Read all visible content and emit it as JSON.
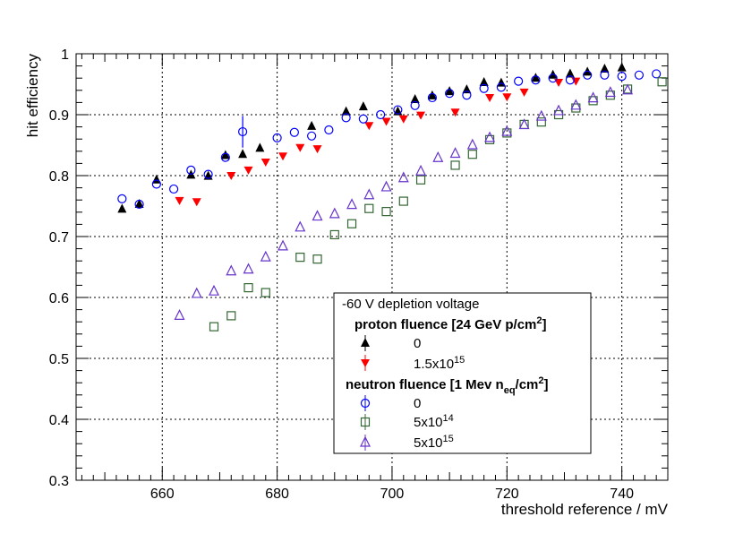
{
  "chart_data": {
    "type": "scatter",
    "xlabel": "threshold reference / mV",
    "ylabel": "hit efficiency",
    "xlim": [
      645,
      748
    ],
    "ylim": [
      0.3,
      1.0
    ],
    "xticks": [
      660,
      680,
      700,
      720,
      740
    ],
    "yticks": [
      0.3,
      0.4,
      0.5,
      0.6,
      0.7,
      0.8,
      0.9,
      1.0
    ],
    "ytick_labels": [
      "0.3",
      "0.4",
      "0.5",
      "0.6",
      "0.7",
      "0.8",
      "0.9",
      "1"
    ],
    "grid": true,
    "legend": {
      "title": "-60 V depletion voltage",
      "proton_header": "proton fluence [24 GeV p/cm",
      "proton_header_sup": "2",
      "proton_header_end": "]",
      "neutron_header": "neutron fluence [1 Mev n",
      "neutron_header_sub": "eq",
      "neutron_header_mid": "/cm",
      "neutron_header_sup": "2",
      "neutron_header_end": "]",
      "entries": [
        {
          "label": "0",
          "sup": "",
          "marker": "triangle-up",
          "color": "#000000"
        },
        {
          "label": "1.5x10",
          "sup": "15",
          "marker": "triangle-down",
          "color": "#ff0000"
        },
        {
          "label": "0",
          "sup": "",
          "marker": "circle-open",
          "color": "#0000ff"
        },
        {
          "label": "5x10",
          "sup": "14",
          "marker": "square-open",
          "color": "#336633"
        },
        {
          "label": "5x10",
          "sup": "15",
          "marker": "triangle-up-open",
          "color": "#6633cc"
        }
      ]
    },
    "series": [
      {
        "name": "proton 0",
        "marker": "triangle-up",
        "color": "#000000",
        "x": [
          653,
          656,
          659,
          665,
          668,
          671,
          674,
          677,
          686,
          692,
          695,
          701,
          704,
          707,
          710,
          713,
          716,
          719,
          725,
          728,
          731,
          734,
          737,
          740
        ],
        "y": [
          0.745,
          0.753,
          0.793,
          0.801,
          0.799,
          0.833,
          0.835,
          0.845,
          0.881,
          0.905,
          0.913,
          0.905,
          0.925,
          0.931,
          0.938,
          0.941,
          0.953,
          0.952,
          0.96,
          0.965,
          0.967,
          0.97,
          0.975,
          0.977
        ]
      },
      {
        "name": "proton 1.5x10^15",
        "marker": "triangle-down",
        "color": "#ff0000",
        "x": [
          663,
          666,
          672,
          675,
          678,
          681,
          684,
          687,
          696,
          699,
          702,
          705,
          711,
          717,
          720,
          723,
          729,
          732
        ],
        "y": [
          0.759,
          0.757,
          0.8,
          0.809,
          0.822,
          0.832,
          0.846,
          0.844,
          0.882,
          0.889,
          0.893,
          0.899,
          0.904,
          0.928,
          0.929,
          0.937,
          0.953,
          0.955
        ]
      },
      {
        "name": "neutron 0",
        "marker": "circle-open",
        "color": "#0000ff",
        "x": [
          653,
          656,
          659,
          662,
          665,
          668,
          671,
          674,
          680,
          683,
          686,
          689,
          692,
          695,
          698,
          701,
          704,
          707,
          710,
          713,
          716,
          719,
          722,
          725,
          728,
          731,
          734,
          737,
          740,
          743,
          746
        ],
        "y": [
          0.762,
          0.753,
          0.786,
          0.778,
          0.809,
          0.802,
          0.83,
          0.872,
          0.862,
          0.871,
          0.865,
          0.875,
          0.895,
          0.893,
          0.9,
          0.908,
          0.915,
          0.928,
          0.935,
          0.932,
          0.943,
          0.945,
          0.955,
          0.957,
          0.96,
          0.957,
          0.965,
          0.965,
          0.963,
          0.965,
          0.967
        ]
      },
      {
        "name": "neutron 5x10^14",
        "marker": "square-open",
        "color": "#336633",
        "x": [
          669,
          672,
          675,
          678,
          684,
          687,
          690,
          693,
          696,
          699,
          702,
          705,
          711,
          714,
          717,
          720,
          723,
          726,
          729,
          732,
          735,
          738,
          741,
          747
        ],
        "y": [
          0.552,
          0.57,
          0.616,
          0.608,
          0.666,
          0.663,
          0.703,
          0.721,
          0.746,
          0.741,
          0.758,
          0.793,
          0.817,
          0.835,
          0.859,
          0.87,
          0.884,
          0.888,
          0.9,
          0.911,
          0.923,
          0.932,
          0.942,
          0.954
        ]
      },
      {
        "name": "neutron 5x10^15",
        "marker": "triangle-up-open",
        "color": "#6633cc",
        "x": [
          663,
          666,
          669,
          672,
          675,
          678,
          681,
          684,
          687,
          690,
          693,
          696,
          699,
          702,
          705,
          708,
          711,
          714,
          717,
          720,
          723,
          726,
          729,
          732,
          735,
          738,
          741
        ],
        "y": [
          0.57,
          0.606,
          0.61,
          0.643,
          0.646,
          0.666,
          0.684,
          0.715,
          0.733,
          0.737,
          0.752,
          0.768,
          0.781,
          0.796,
          0.807,
          0.829,
          0.836,
          0.85,
          0.862,
          0.872,
          0.883,
          0.897,
          0.906,
          0.915,
          0.927,
          0.936,
          0.94
        ]
      }
    ],
    "error_bars": [
      {
        "series": "neutron 0",
        "x": 674,
        "y": 0.872,
        "low": 0.846,
        "high": 0.898
      }
    ]
  }
}
